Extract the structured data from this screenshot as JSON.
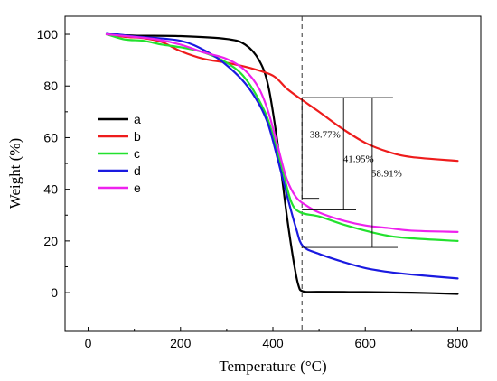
{
  "chart_data": {
    "type": "line",
    "xlabel": "Temperature (°C)",
    "ylabel": "Weight (%)",
    "xlim": [
      -50,
      850
    ],
    "ylim": [
      -15,
      107
    ],
    "xticks": [
      0,
      200,
      400,
      600,
      800
    ],
    "yticks": [
      0,
      20,
      40,
      60,
      80,
      100
    ],
    "grid": false,
    "legend_position": "center-left",
    "reference_line_x": 463,
    "series": [
      {
        "name": "a",
        "color": "#000000",
        "points": [
          [
            40,
            100
          ],
          [
            100,
            99.5
          ],
          [
            200,
            99.3
          ],
          [
            300,
            98.2
          ],
          [
            340,
            96
          ],
          [
            370,
            90
          ],
          [
            390,
            80
          ],
          [
            410,
            58
          ],
          [
            430,
            30
          ],
          [
            445,
            12
          ],
          [
            455,
            3
          ],
          [
            465,
            0.5
          ],
          [
            500,
            0.3
          ],
          [
            600,
            0.2
          ],
          [
            700,
            0
          ],
          [
            800,
            -0.5
          ]
        ]
      },
      {
        "name": "b",
        "color": "#ee1c1c",
        "points": [
          [
            40,
            100
          ],
          [
            80,
            99
          ],
          [
            120,
            98.5
          ],
          [
            160,
            97
          ],
          [
            200,
            93.5
          ],
          [
            250,
            90.5
          ],
          [
            300,
            89
          ],
          [
            350,
            87
          ],
          [
            400,
            84
          ],
          [
            430,
            79
          ],
          [
            460,
            75
          ],
          [
            500,
            70
          ],
          [
            550,
            63.5
          ],
          [
            600,
            58
          ],
          [
            650,
            54.5
          ],
          [
            700,
            52.5
          ],
          [
            800,
            51
          ]
        ]
      },
      {
        "name": "c",
        "color": "#22e12e",
        "points": [
          [
            40,
            100
          ],
          [
            80,
            98
          ],
          [
            120,
            97.5
          ],
          [
            160,
            96
          ],
          [
            200,
            95
          ],
          [
            250,
            93
          ],
          [
            300,
            89
          ],
          [
            340,
            83
          ],
          [
            380,
            71
          ],
          [
            400,
            61
          ],
          [
            420,
            48
          ],
          [
            440,
            35
          ],
          [
            460,
            31
          ],
          [
            500,
            29.5
          ],
          [
            550,
            26.5
          ],
          [
            600,
            24
          ],
          [
            650,
            22
          ],
          [
            700,
            21
          ],
          [
            800,
            20
          ]
        ]
      },
      {
        "name": "d",
        "color": "#1a1ae0",
        "points": [
          [
            40,
            100.5
          ],
          [
            100,
            99.2
          ],
          [
            200,
            97.5
          ],
          [
            260,
            93
          ],
          [
            300,
            88
          ],
          [
            340,
            81
          ],
          [
            370,
            73
          ],
          [
            390,
            65
          ],
          [
            410,
            52
          ],
          [
            430,
            38
          ],
          [
            450,
            25
          ],
          [
            465,
            18
          ],
          [
            500,
            15
          ],
          [
            550,
            12
          ],
          [
            600,
            9.5
          ],
          [
            650,
            8
          ],
          [
            700,
            7
          ],
          [
            800,
            5.5
          ]
        ]
      },
      {
        "name": "e",
        "color": "#ee22ee",
        "points": [
          [
            40,
            100
          ],
          [
            100,
            99
          ],
          [
            150,
            98
          ],
          [
            200,
            96
          ],
          [
            250,
            93
          ],
          [
            300,
            90.5
          ],
          [
            340,
            86
          ],
          [
            370,
            79
          ],
          [
            390,
            70
          ],
          [
            410,
            57
          ],
          [
            430,
            44
          ],
          [
            450,
            37
          ],
          [
            470,
            34
          ],
          [
            500,
            31
          ],
          [
            550,
            28
          ],
          [
            600,
            26
          ],
          [
            650,
            25
          ],
          [
            700,
            24
          ],
          [
            800,
            23.5
          ]
        ]
      }
    ],
    "annotations": [
      {
        "text": "38.77%",
        "x": 463,
        "y_top": 75.5,
        "y_bottom": 36.5,
        "label_x": 480,
        "label_y": 60
      },
      {
        "text": "41.95%",
        "x": 553,
        "y_top": 75.5,
        "y_bottom": 32,
        "label_x": 552,
        "label_y": 50.5
      },
      {
        "text": "58.91%",
        "x": 615,
        "y_top": 75.5,
        "y_bottom": 17.5,
        "label_x": 613,
        "label_y": 45
      }
    ],
    "annotation_bracket": {
      "top_y": 75.5,
      "top_x0": 463,
      "top_x1": 660,
      "bottom_ticks": [
        {
          "y": 36.5,
          "x0": 463,
          "x1": 500
        },
        {
          "y": 32,
          "x0": 463,
          "x1": 580
        },
        {
          "y": 17.5,
          "x0": 463,
          "x1": 670
        }
      ]
    }
  }
}
